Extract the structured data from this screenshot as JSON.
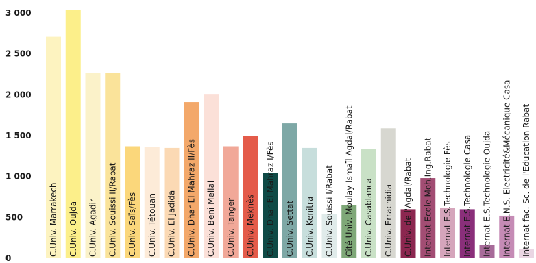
{
  "chart_data": {
    "type": "bar",
    "orientation": "vertical",
    "labels_inside_bars": "rotated vertical",
    "grid": false,
    "ylim": [
      0,
      3000
    ],
    "yticks": [
      0,
      500,
      1000,
      1500,
      2000,
      2500,
      3000
    ],
    "ytick_labels": [
      "0",
      "500",
      "1 000",
      "1 500",
      "2 000",
      "2 500",
      "3 000"
    ],
    "categories": [
      "C.Univ. Marrakech",
      "C.Univ. Oujda",
      "C.Univ. Agadir",
      "C.Univ. Souissi II/Rabat",
      "C.Univ. Saïs/Fès",
      "C.Univ. Tétouan",
      "C.Univ. El Jadida",
      "C.Univ. Dhar El Mahraz II/Fès",
      "C.Univ. Beni Mellal",
      "C.Univ. Tanger",
      "C.Univ. Meknès",
      "C.Univ. Dhar El Mahraz I/Fès",
      "C.Univ. Settat",
      "C.Univ. Kenitra",
      "C.Univ. Souissi I/Rabat",
      "Cité Univ. Moulay Ismaïl Agdal/Rabat",
      "C.Univ. Casablanca",
      "C.Univ. Errachidia",
      "C.Univ. de l'Agdal/Rabat",
      "Internat Ecole Moh.Ing.Rabat",
      "Internat E.S.Technologie Fès",
      "Internat E.S.Technologie Casa",
      "Internat E.S.Technologie Oujda",
      "Internat E.N.S. Electricité&Mécanique Casa",
      "Internat fac. Sc. de l'Education Rabat"
    ],
    "values": [
      2710,
      3040,
      2270,
      2270,
      1370,
      1360,
      1350,
      1910,
      2010,
      1370,
      1500,
      1040,
      1650,
      1350,
      540,
      650,
      1340,
      1590,
      600,
      980,
      620,
      600,
      160,
      520,
      110
    ],
    "colors": [
      "#fdf3c0",
      "#fcef8a",
      "#fbf2c9",
      "#fae39a",
      "#fbd77b",
      "#fdebd8",
      "#fbd9b4",
      "#f3a86a",
      "#fbe0d8",
      "#f1a898",
      "#e45b4a",
      "#0f4a46",
      "#7ea8a6",
      "#c7dedc",
      "#e0ebea",
      "#7fa878",
      "#c9e1c6",
      "#d7d7d0",
      "#8c2750",
      "#a24d73",
      "#d5a5bb",
      "#8a2f7a",
      "#a76b99",
      "#c58bb5",
      "#ead6e3"
    ]
  }
}
